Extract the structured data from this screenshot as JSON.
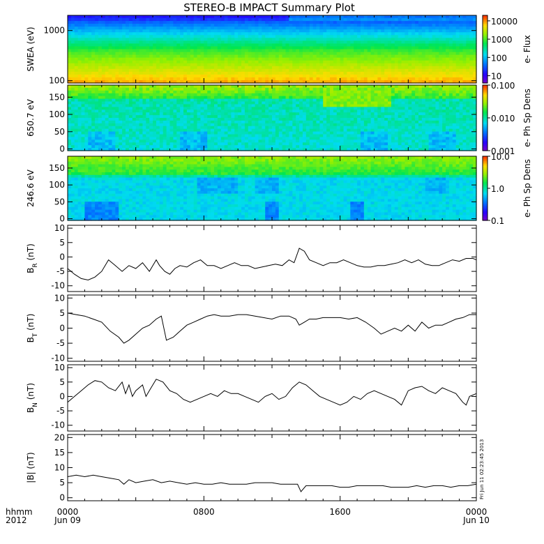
{
  "title": "STEREO-B IMPACT Summary Plot",
  "colors": {
    "background": "#ffffff",
    "axis": "#000000",
    "line": "#000000"
  },
  "time_axis": {
    "corner_label_1": "hhmm",
    "corner_label_2": "2012",
    "ticks": [
      {
        "hour": 0,
        "label": "0000",
        "sublabel": "Jun 09"
      },
      {
        "hour": 8,
        "label": "0800",
        "sublabel": ""
      },
      {
        "hour": 16,
        "label": "1600",
        "sublabel": ""
      },
      {
        "hour": 24,
        "label": "0000",
        "sublabel": "Jun 10"
      }
    ],
    "range_hours": [
      0,
      24
    ]
  },
  "side_note": "Fri Jun 11 02:23:45 2013",
  "chart_data": [
    {
      "type": "heatmap",
      "id": "swea",
      "ylabel": "SWEA (eV)",
      "ylog": true,
      "ylim": [
        90,
        2000
      ],
      "yticks": [
        {
          "v": 100,
          "label": "100"
        },
        {
          "v": 1000,
          "label": "1000"
        }
      ],
      "colorbar": {
        "label": "e- Flux",
        "log": true,
        "range": [
          4,
          20000
        ],
        "ticks": [
          {
            "v": 10,
            "label": "10"
          },
          {
            "v": 100,
            "label": "100"
          },
          {
            "v": 1000,
            "label": "1000"
          },
          {
            "v": 10000,
            "label": "10000"
          }
        ]
      }
    },
    {
      "type": "heatmap",
      "id": "pad650",
      "ylabel": "650.7 eV",
      "ylog": false,
      "ylim": [
        -5,
        185
      ],
      "yticks": [
        {
          "v": 0,
          "label": "0"
        },
        {
          "v": 50,
          "label": "50"
        },
        {
          "v": 100,
          "label": "100"
        },
        {
          "v": 150,
          "label": "150"
        }
      ],
      "colorbar": {
        "label": "e- Ph Sp Dens",
        "log": true,
        "range": [
          0.001,
          0.1
        ],
        "ticks": [
          {
            "v": 0.001,
            "label": "0.001"
          },
          {
            "v": 0.01,
            "label": "0.010"
          },
          {
            "v": 0.1,
            "label": "0.100"
          }
        ]
      }
    },
    {
      "type": "heatmap",
      "id": "pad246",
      "ylabel": "246.6 eV",
      "ylog": false,
      "ylim": [
        -5,
        185
      ],
      "yticks": [
        {
          "v": 0,
          "label": "0"
        },
        {
          "v": 50,
          "label": "50"
        },
        {
          "v": 100,
          "label": "100"
        },
        {
          "v": 150,
          "label": "150"
        }
      ],
      "colorbar": {
        "label": "e- Ph Sp Dens",
        "log": true,
        "range": [
          0.1,
          10
        ],
        "ticks": [
          {
            "v": 0.1,
            "label": "0.1"
          },
          {
            "v": 1,
            "label": "1.0"
          },
          {
            "v": 10,
            "label": "10.0"
          }
        ]
      }
    },
    {
      "type": "line",
      "id": "br",
      "ylabel": "B",
      "ysub": "R",
      "yunit": " (nT)",
      "ylim": [
        -12,
        11
      ],
      "yticks": [
        {
          "v": -10,
          "label": "-10"
        },
        {
          "v": -5,
          "label": "-5"
        },
        {
          "v": 0,
          "label": "0"
        },
        {
          "v": 5,
          "label": "5"
        },
        {
          "v": 10,
          "label": "10"
        }
      ],
      "x": [
        0,
        0.4,
        0.8,
        1.2,
        1.6,
        2.0,
        2.4,
        2.8,
        3.2,
        3.6,
        4.0,
        4.4,
        4.8,
        5.2,
        5.4,
        5.7,
        6.0,
        6.3,
        6.6,
        7.0,
        7.4,
        7.8,
        8.2,
        8.6,
        9.0,
        9.4,
        9.8,
        10.2,
        10.6,
        11.0,
        11.4,
        11.8,
        12.2,
        12.6,
        13.0,
        13.3,
        13.6,
        13.9,
        14.2,
        14.6,
        15.0,
        15.4,
        15.8,
        16.2,
        16.6,
        17.0,
        17.4,
        17.8,
        18.2,
        18.6,
        19.0,
        19.4,
        19.8,
        20.2,
        20.6,
        21.0,
        21.4,
        21.8,
        22.2,
        22.6,
        23.0,
        23.4,
        23.8,
        24.0
      ],
      "y": [
        -4,
        -6,
        -7.5,
        -8,
        -7,
        -5,
        -1,
        -3,
        -5,
        -3,
        -4,
        -2,
        -5,
        -1,
        -3,
        -5,
        -6,
        -4,
        -3,
        -3.5,
        -2,
        -1,
        -3,
        -3,
        -4,
        -3,
        -2,
        -3,
        -3,
        -4,
        -3.5,
        -3,
        -2.5,
        -3,
        -1,
        -2,
        3,
        2,
        -1,
        -2,
        -3,
        -2,
        -2,
        -1,
        -2,
        -3,
        -3.5,
        -3.5,
        -3,
        -3,
        -2.5,
        -2,
        -1,
        -2,
        -1,
        -2.5,
        -3,
        -3,
        -2,
        -1,
        -1.5,
        -0.5,
        -0.5,
        -1
      ]
    },
    {
      "type": "line",
      "id": "bt",
      "ylabel": "B",
      "ysub": "T",
      "yunit": " (nT)",
      "ylim": [
        -11,
        11
      ],
      "yticks": [
        {
          "v": -10,
          "label": "-10"
        },
        {
          "v": -5,
          "label": "-5"
        },
        {
          "v": 0,
          "label": "0"
        },
        {
          "v": 5,
          "label": "5"
        },
        {
          "v": 10,
          "label": "10"
        }
      ],
      "x": [
        0,
        0.5,
        1.0,
        1.5,
        2.0,
        2.5,
        3.0,
        3.3,
        3.6,
        4.0,
        4.4,
        4.8,
        5.2,
        5.5,
        5.8,
        6.2,
        6.6,
        7.0,
        7.4,
        7.8,
        8.2,
        8.6,
        9.0,
        9.5,
        10.0,
        10.5,
        11.0,
        11.5,
        12.0,
        12.5,
        13.0,
        13.4,
        13.6,
        13.9,
        14.2,
        14.6,
        15.0,
        15.5,
        16.0,
        16.5,
        17.0,
        17.5,
        18.0,
        18.4,
        18.8,
        19.2,
        19.6,
        20.0,
        20.4,
        20.8,
        21.2,
        21.6,
        22.0,
        22.4,
        22.8,
        23.2,
        23.6,
        24.0
      ],
      "y": [
        5,
        4.5,
        4,
        3,
        2,
        -1,
        -3,
        -5,
        -4,
        -2,
        0,
        1,
        3,
        4,
        -4,
        -3,
        -1,
        1,
        2,
        3,
        4,
        4.5,
        4,
        4,
        4.5,
        4.5,
        4,
        3.5,
        3,
        4,
        4,
        3,
        1,
        2,
        3,
        3,
        3.5,
        3.5,
        3.5,
        3,
        3.5,
        2,
        0,
        -2,
        -1,
        0,
        -1,
        1,
        -1,
        2,
        0,
        1,
        1,
        2,
        3,
        3.5,
        4.5,
        4.5
      ]
    },
    {
      "type": "line",
      "id": "bn",
      "ylabel": "B",
      "ysub": "N",
      "yunit": " (nT)",
      "ylim": [
        -12,
        11
      ],
      "yticks": [
        {
          "v": -10,
          "label": "-10"
        },
        {
          "v": -5,
          "label": "-5"
        },
        {
          "v": 0,
          "label": "0"
        },
        {
          "v": 5,
          "label": "5"
        },
        {
          "v": 10,
          "label": "10"
        }
      ],
      "x": [
        0,
        0.4,
        0.8,
        1.2,
        1.6,
        2.0,
        2.4,
        2.8,
        3.2,
        3.4,
        3.6,
        3.8,
        4.0,
        4.4,
        4.6,
        4.9,
        5.2,
        5.6,
        6.0,
        6.4,
        6.8,
        7.2,
        7.6,
        8.0,
        8.4,
        8.8,
        9.2,
        9.6,
        10.0,
        10.4,
        10.8,
        11.2,
        11.6,
        12.0,
        12.4,
        12.8,
        13.2,
        13.6,
        14.0,
        14.4,
        14.8,
        15.2,
        15.6,
        16.0,
        16.4,
        16.8,
        17.2,
        17.6,
        18.0,
        18.4,
        18.8,
        19.2,
        19.6,
        20.0,
        20.4,
        20.8,
        21.2,
        21.6,
        22.0,
        22.4,
        22.8,
        23.2,
        23.4,
        23.6,
        24.0
      ],
      "y": [
        -2,
        0,
        2,
        4,
        5.5,
        5,
        3,
        2,
        5,
        1,
        4,
        0,
        2,
        4,
        0,
        3,
        6,
        5,
        2,
        1,
        -1,
        -2,
        -1,
        0,
        1,
        0,
        2,
        1,
        1,
        0,
        -1,
        -2,
        0,
        1,
        -1,
        0,
        3,
        5,
        4,
        2,
        0,
        -1,
        -2,
        -3,
        -2,
        0,
        -1,
        1,
        2,
        1,
        0,
        -1,
        -3,
        2,
        3,
        3.5,
        2,
        1,
        3,
        2,
        1,
        -2,
        -3,
        0,
        1
      ]
    },
    {
      "type": "line",
      "id": "bmag",
      "ylabel": "|B| (nT)",
      "ylim": [
        -1,
        21
      ],
      "yticks": [
        {
          "v": 0,
          "label": "0"
        },
        {
          "v": 5,
          "label": "5"
        },
        {
          "v": 10,
          "label": "10"
        },
        {
          "v": 15,
          "label": "15"
        },
        {
          "v": 20,
          "label": "20"
        }
      ],
      "x": [
        0,
        0.5,
        1.0,
        1.5,
        2.0,
        2.5,
        3.0,
        3.3,
        3.6,
        4.0,
        4.5,
        5.0,
        5.5,
        6.0,
        6.5,
        7.0,
        7.5,
        8.0,
        8.5,
        9.0,
        9.5,
        10.0,
        10.5,
        11.0,
        11.5,
        12.0,
        12.5,
        13.0,
        13.5,
        13.7,
        14.0,
        14.5,
        15.0,
        15.5,
        16.0,
        16.5,
        17.0,
        17.5,
        18.0,
        18.5,
        19.0,
        19.5,
        20.0,
        20.5,
        21.0,
        21.5,
        22.0,
        22.5,
        23.0,
        23.5,
        24.0
      ],
      "y": [
        7,
        7.5,
        7,
        7.5,
        7,
        6.5,
        6,
        4.5,
        6,
        5,
        5.5,
        6,
        5,
        5.5,
        5,
        4.5,
        5,
        4.5,
        4.5,
        5,
        4.5,
        4.5,
        4.5,
        5,
        5,
        5,
        4.5,
        4.5,
        4.5,
        2,
        4,
        4,
        4,
        4,
        3.5,
        3.5,
        4,
        4,
        4,
        4,
        3.5,
        3.5,
        3.5,
        4,
        3.5,
        4,
        4,
        3.5,
        4,
        4,
        4.5
      ]
    }
  ]
}
